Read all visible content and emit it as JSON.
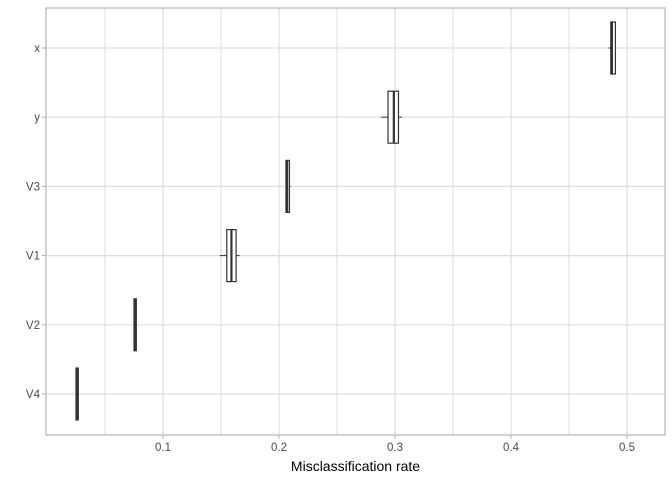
{
  "chart_data": {
    "type": "boxplot",
    "orientation": "horizontal",
    "title": "",
    "xlabel": "Misclassification rate",
    "ylabel": "",
    "xlim": [
      0.0,
      0.53
    ],
    "x_ticks": [
      0.1,
      0.2,
      0.3,
      0.4,
      0.5
    ],
    "x_tick_labels": [
      "0.1",
      "0.2",
      "0.3",
      "0.4",
      "0.5"
    ],
    "grid": true,
    "categories": [
      "V4",
      "V2",
      "V1",
      "V3",
      "y",
      "x"
    ],
    "boxes": [
      {
        "category": "V4",
        "min": 0.025,
        "q1": 0.025,
        "median": 0.026,
        "q3": 0.027,
        "max": 0.027
      },
      {
        "category": "V2",
        "min": 0.075,
        "q1": 0.075,
        "median": 0.076,
        "q3": 0.077,
        "max": 0.077
      },
      {
        "category": "V1",
        "min": 0.149,
        "q1": 0.155,
        "median": 0.159,
        "q3": 0.163,
        "max": 0.166
      },
      {
        "category": "V3",
        "min": 0.206,
        "q1": 0.206,
        "median": 0.207,
        "q3": 0.209,
        "max": 0.21
      },
      {
        "category": "y",
        "min": 0.288,
        "q1": 0.294,
        "median": 0.299,
        "q3": 0.303,
        "max": 0.306
      },
      {
        "category": "x",
        "min": 0.484,
        "q1": 0.486,
        "median": 0.487,
        "q3": 0.49,
        "max": 0.49
      }
    ],
    "colors": {
      "box_outline": "#333333",
      "box_fill": "#ffffff",
      "grid": "#dedede",
      "panel_border": "#b3b3b3",
      "tick_text": "#4d4d4d"
    }
  }
}
